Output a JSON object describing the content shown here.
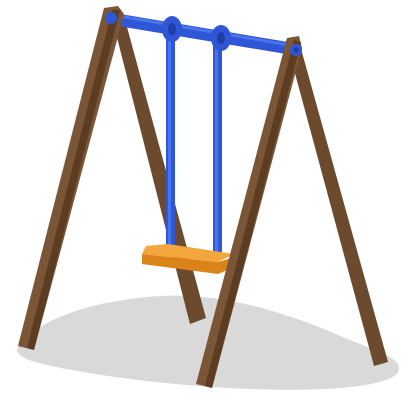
{
  "illustration": {
    "subject": "swing-set",
    "colors": {
      "shadow": "#d9d9d9",
      "wood_front": "#7a5536",
      "wood_dark": "#5c3d22",
      "wood_back": "#6b4a2e",
      "metal_blue": "#2f56d6",
      "metal_blue_light": "#4a73ee",
      "metal_blue_dark": "#1f3fa8",
      "seat_top": "#f2a63b",
      "seat_side": "#d98319"
    }
  }
}
